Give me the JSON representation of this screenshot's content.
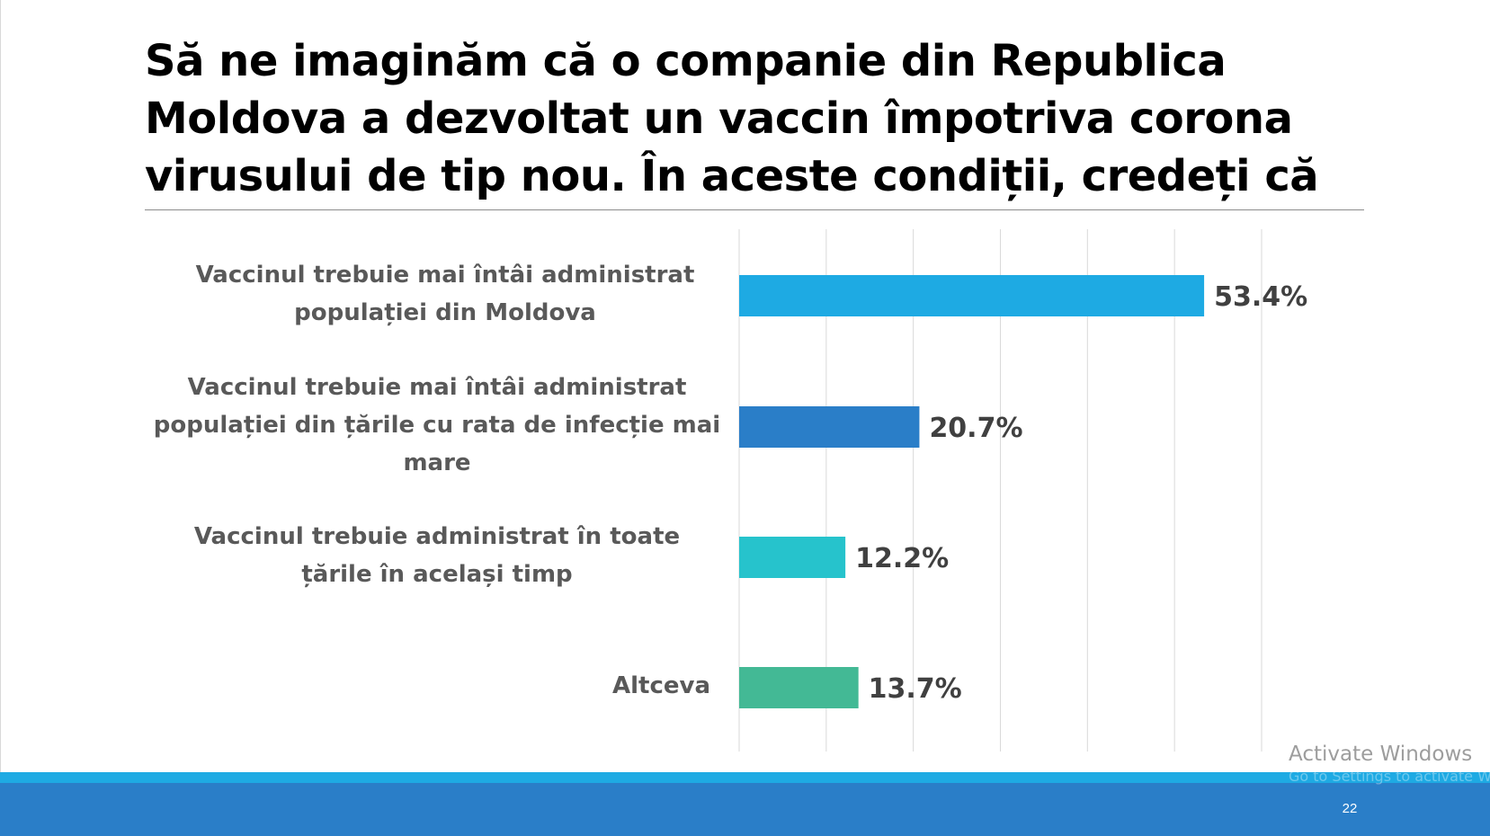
{
  "slide": {
    "title": "Să ne imaginăm că o companie din Republica Moldova a dezvoltat un vaccin împotriva corona virusului de tip nou. În aceste condiții, credeți că",
    "page_number": "22"
  },
  "watermark": {
    "line1": "Activate Windows",
    "line2": "Go to Settings to activate Windows."
  },
  "chart_data": {
    "type": "bar",
    "orientation": "horizontal",
    "categories": [
      "Vaccinul trebuie mai întâi administrat populației din Moldova",
      "Vaccinul trebuie mai întâi administrat populației din țările cu rata de infecție mai mare",
      "Vaccinul trebuie administrat în toate țările în același timp",
      "Altceva"
    ],
    "values": [
      53.4,
      20.7,
      12.2,
      13.7
    ],
    "value_labels": [
      "53.4%",
      "20.7%",
      "12.2%",
      "13.7%"
    ],
    "bar_colors": [
      "#1eaae3",
      "#2a7ec8",
      "#26c3cc",
      "#43b995"
    ],
    "xlim": [
      0,
      60
    ],
    "grid": true,
    "legend": "none",
    "title": "",
    "xlabel": "",
    "ylabel": ""
  }
}
